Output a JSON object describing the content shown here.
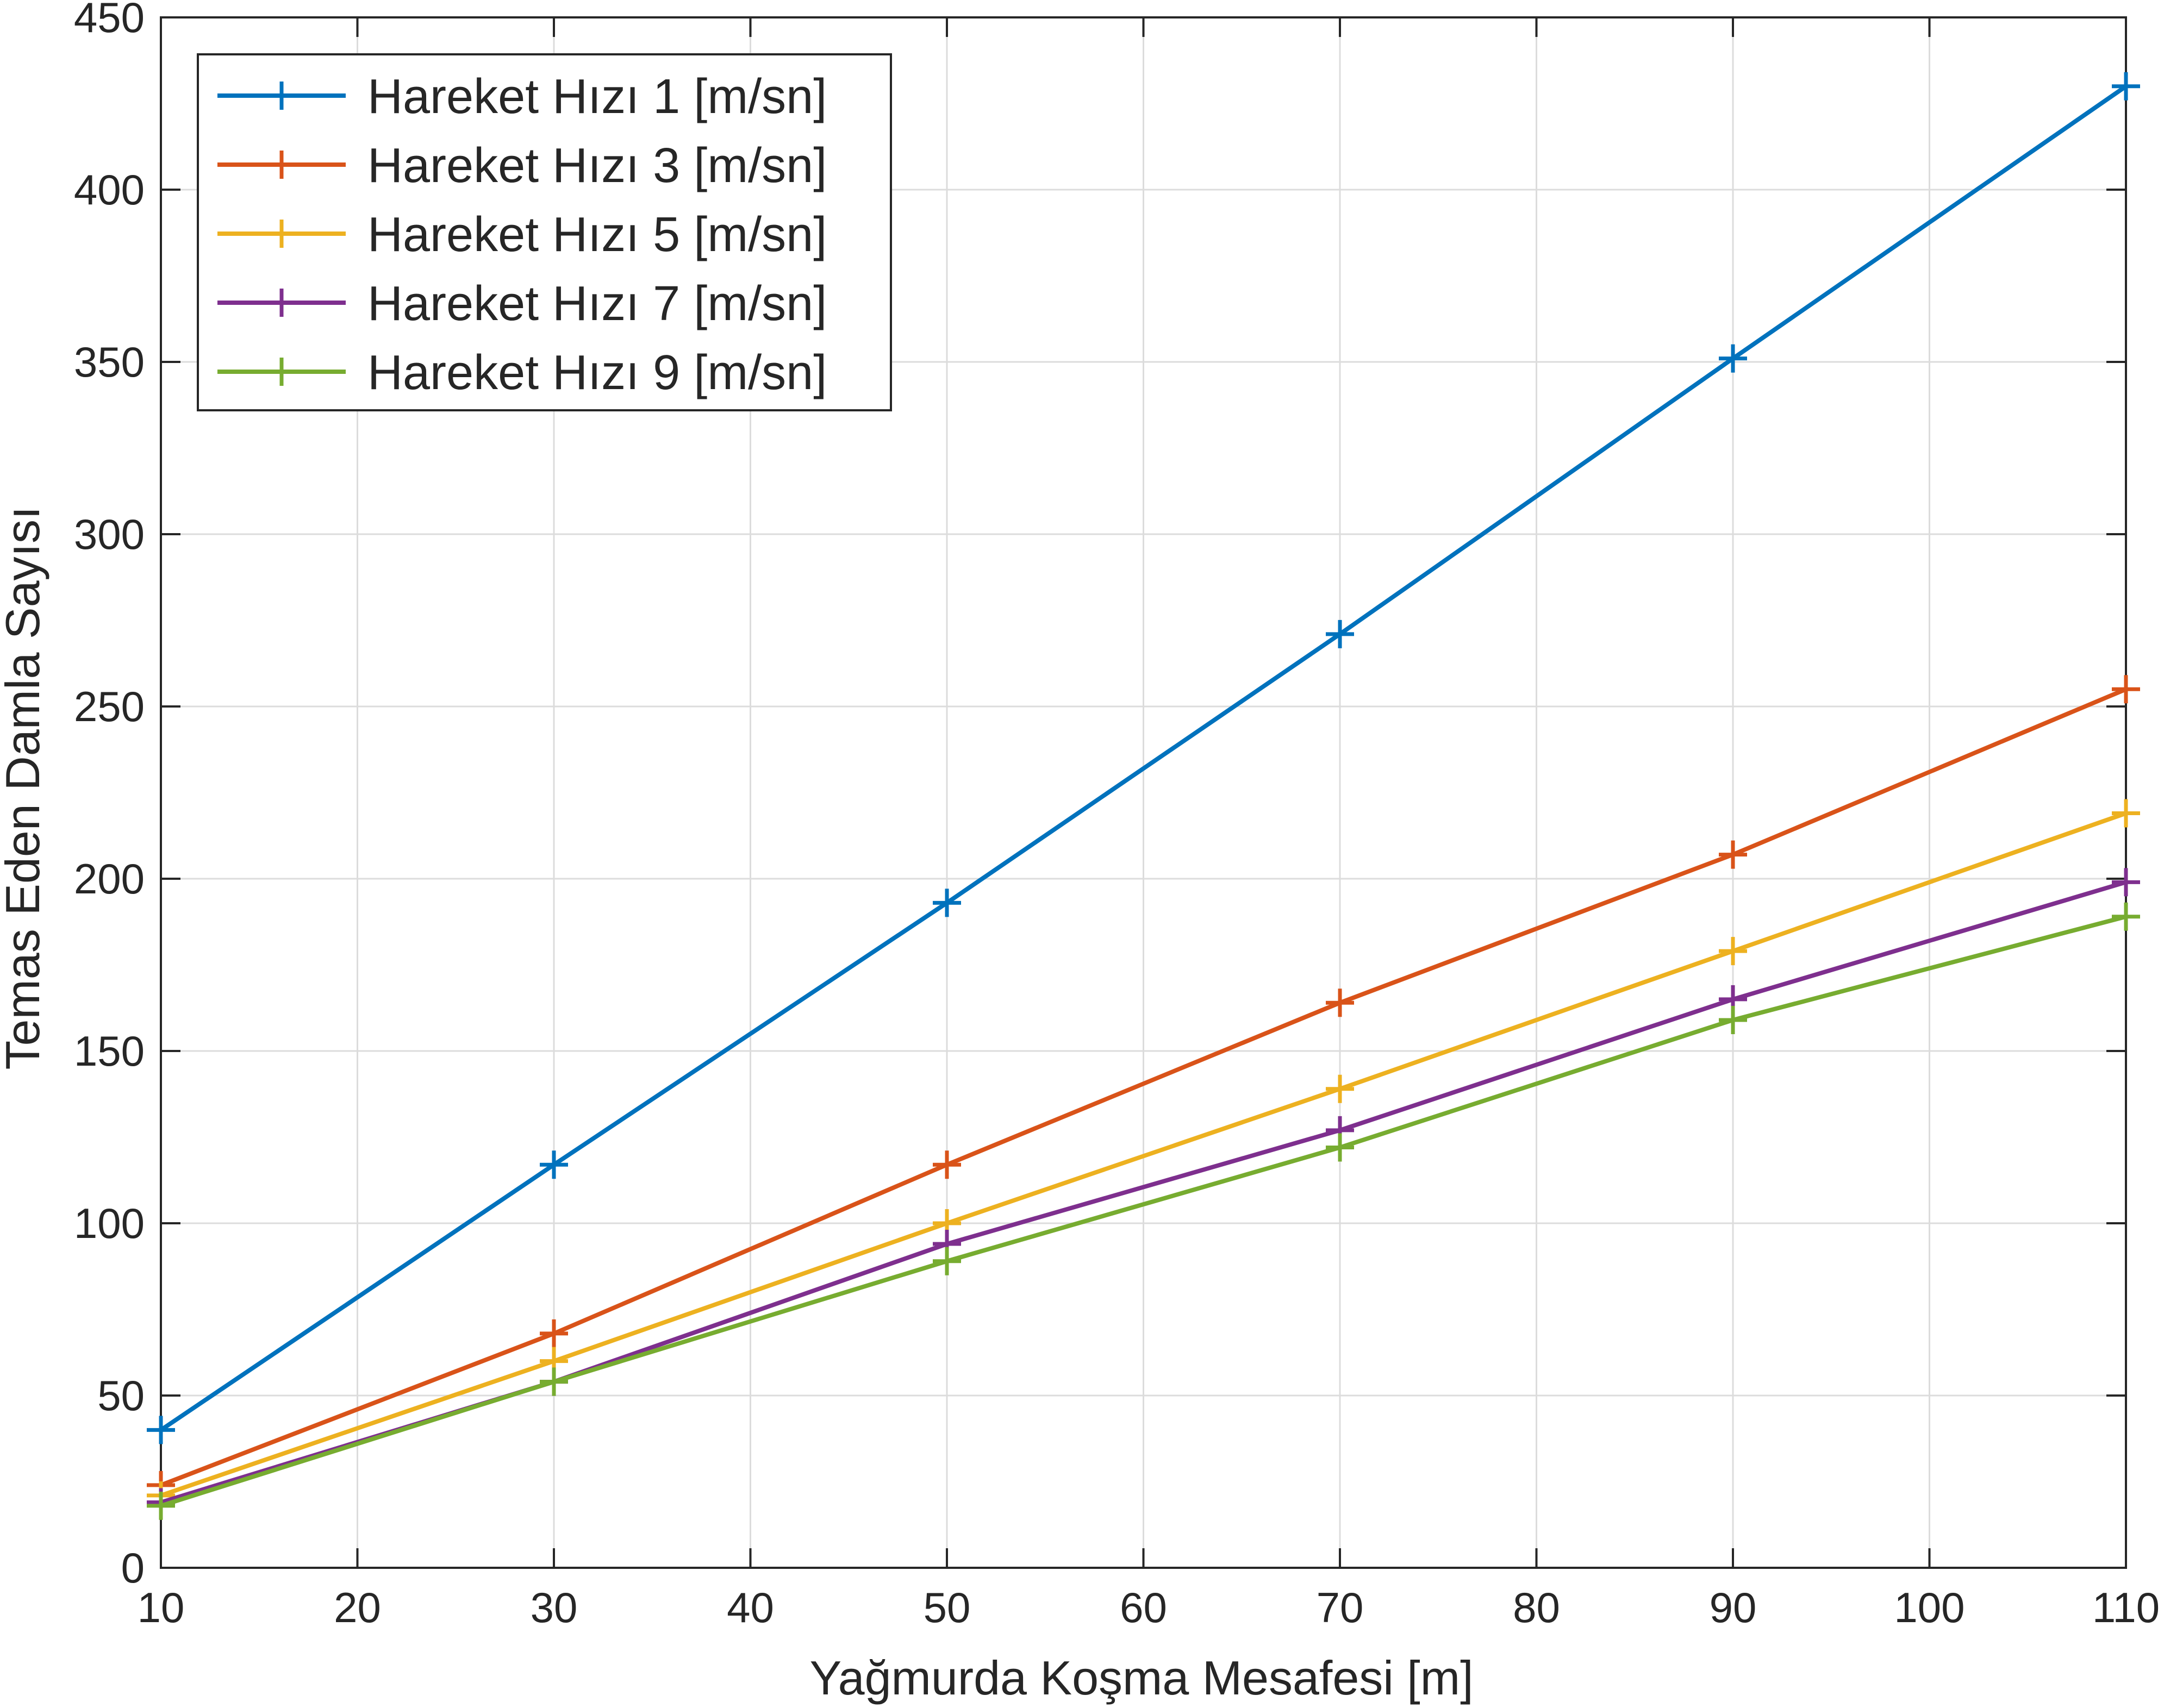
{
  "chart_data": {
    "type": "line",
    "title": "",
    "xlabel": "Yağmurda Koşma Mesafesi [m]",
    "ylabel": "Temas Eden Damla Sayısı",
    "xlim": [
      10,
      110
    ],
    "ylim": [
      0,
      450
    ],
    "xticks": [
      10,
      20,
      30,
      40,
      50,
      60,
      70,
      80,
      90,
      100,
      110
    ],
    "yticks": [
      0,
      50,
      100,
      150,
      200,
      250,
      300,
      350,
      400,
      450
    ],
    "grid": true,
    "legend_position": "top-left",
    "marker": "+",
    "x": [
      10,
      30,
      50,
      70,
      90,
      110
    ],
    "series": [
      {
        "name": "Hareket Hızı 1 [m/sn]",
        "color": "#0072BD",
        "values": [
          40,
          117,
          193,
          271,
          351,
          430
        ]
      },
      {
        "name": "Hareket Hızı 3 [m/sn]",
        "color": "#D95319",
        "values": [
          24,
          68,
          117,
          164,
          207,
          255
        ]
      },
      {
        "name": "Hareket Hızı 5 [m/sn]",
        "color": "#EDB120",
        "values": [
          21,
          60,
          100,
          139,
          179,
          219
        ]
      },
      {
        "name": "Hareket Hızı 7 [m/sn]",
        "color": "#7E2F8E",
        "values": [
          19,
          54,
          94,
          127,
          165,
          199
        ]
      },
      {
        "name": "Hareket Hızı 9 [m/sn]",
        "color": "#77AC30",
        "values": [
          18,
          54,
          89,
          122,
          159,
          189
        ]
      }
    ]
  }
}
